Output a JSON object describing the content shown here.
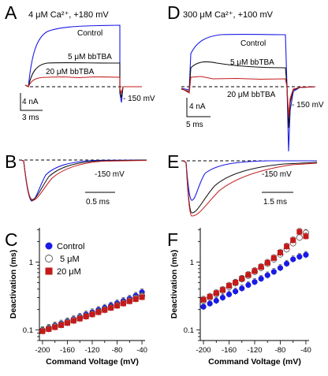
{
  "panels": {
    "A": {
      "letter": "A",
      "condition": "4 μM Ca²⁺, +180 mV",
      "trace_labels": [
        "Control",
        "5 μM bbTBA",
        "20 μM bbTBA"
      ],
      "step_label": "- 150 mV",
      "scale_y": "4 nA",
      "scale_x": "3 ms"
    },
    "D": {
      "letter": "D",
      "condition": "300 μM Ca²⁺, +100 mV",
      "trace_labels": [
        "Control",
        "5 μM bbTBA",
        "20 μM bbTBA"
      ],
      "step_label": "- 150 mV",
      "scale_y": "4 nA",
      "scale_x": "5 ms"
    },
    "B": {
      "letter": "B",
      "step_label": "-150 mV",
      "scale_x": "0.5 ms"
    },
    "E": {
      "letter": "E",
      "step_label": "-150 mV",
      "scale_x": "1.5 ms"
    },
    "C": {
      "letter": "C"
    },
    "F": {
      "letter": "F"
    }
  },
  "colors": {
    "control": "#1a1ae6",
    "bbTBA_5": "#111111",
    "bbTBA_20": "#c41a1a"
  },
  "chart_data": [
    {
      "type": "scatter",
      "panel": "C",
      "xlabel": "Command Voltage (mV)",
      "ylabel": "Deactivation (ms)",
      "x_ticks": [
        -200,
        -160,
        -120,
        -80,
        -40
      ],
      "y_ticks": [
        0.1,
        1
      ],
      "y_scale": "log",
      "xlim": [
        -205,
        -35
      ],
      "ylim": [
        0.07,
        3.2
      ],
      "legend": [
        "Control",
        "5 μM",
        "20 μM"
      ],
      "x": [
        -200,
        -190,
        -180,
        -170,
        -160,
        -150,
        -140,
        -130,
        -120,
        -110,
        -100,
        -90,
        -80,
        -70,
        -60,
        -50,
        -40
      ],
      "series": [
        {
          "name": "Control",
          "values": [
            0.1,
            0.108,
            0.117,
            0.125,
            0.135,
            0.145,
            0.157,
            0.17,
            0.183,
            0.198,
            0.213,
            0.23,
            0.248,
            0.268,
            0.29,
            0.32,
            0.36
          ]
        },
        {
          "name": "5 μM",
          "values": [
            0.098,
            0.105,
            0.113,
            0.12,
            0.13,
            0.14,
            0.15,
            0.16,
            0.172,
            0.185,
            0.2,
            0.215,
            0.232,
            0.25,
            0.27,
            0.295,
            0.32
          ]
        },
        {
          "name": "20 μM",
          "values": [
            0.096,
            0.103,
            0.11,
            0.118,
            0.127,
            0.137,
            0.147,
            0.158,
            0.17,
            0.183,
            0.197,
            0.212,
            0.228,
            0.246,
            0.265,
            0.285,
            0.305
          ]
        }
      ]
    },
    {
      "type": "scatter",
      "panel": "F",
      "xlabel": "Command Voltage (mV)",
      "ylabel": "Deactivation (ms)",
      "x_ticks": [
        -200,
        -160,
        -120,
        -80,
        -40
      ],
      "y_ticks": [
        0.1,
        1
      ],
      "y_scale": "log",
      "xlim": [
        -205,
        -35
      ],
      "ylim": [
        0.07,
        3.2
      ],
      "x": [
        -200,
        -190,
        -180,
        -170,
        -160,
        -150,
        -140,
        -130,
        -120,
        -110,
        -100,
        -90,
        -80,
        -70,
        -60,
        -50,
        -40
      ],
      "series": [
        {
          "name": "Control",
          "values": [
            0.22,
            0.245,
            0.27,
            0.3,
            0.335,
            0.37,
            0.41,
            0.46,
            0.51,
            0.57,
            0.64,
            0.72,
            0.82,
            0.95,
            1.1,
            1.2,
            1.28
          ]
        },
        {
          "name": "5 μM",
          "values": [
            0.27,
            0.3,
            0.34,
            0.38,
            0.43,
            0.49,
            0.56,
            0.63,
            0.72,
            0.82,
            0.95,
            1.1,
            1.3,
            1.55,
            1.9,
            2.3,
            2.7
          ]
        },
        {
          "name": "20 μM",
          "values": [
            0.28,
            0.31,
            0.35,
            0.39,
            0.45,
            0.5,
            0.57,
            0.65,
            0.74,
            0.85,
            0.98,
            1.15,
            1.38,
            1.7,
            2.1,
            2.8,
            2.4
          ]
        }
      ]
    }
  ]
}
